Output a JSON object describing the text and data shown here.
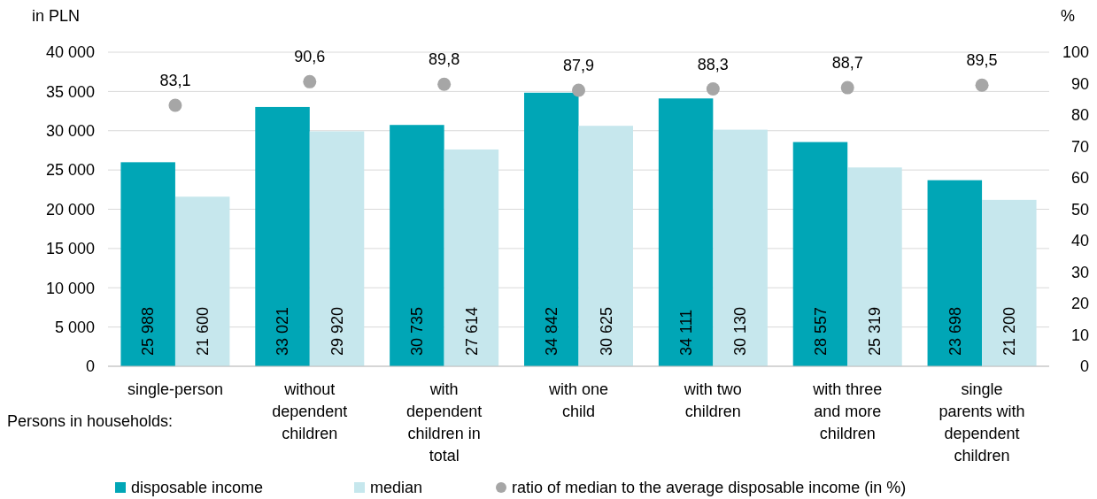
{
  "chart_data": {
    "type": "bar",
    "ylabel": "in PLN",
    "y2label": "%",
    "categories": [
      "single-person",
      "without dependent children",
      "with dependent children in total",
      "with one child",
      "with two children",
      "with three and more children",
      "single parents with dependent children"
    ],
    "series": [
      {
        "name": "disposable income",
        "color": "#00a6b6",
        "values": [
          25988,
          33021,
          30735,
          34842,
          34111,
          28557,
          23698
        ],
        "value_labels": [
          "25 988",
          "33 021",
          "30 735",
          "34 842",
          "34 111",
          "28 557",
          "23 698"
        ]
      },
      {
        "name": "median",
        "color": "#c6e7ed",
        "values": [
          21600,
          29920,
          27614,
          30625,
          30130,
          25319,
          21200
        ],
        "value_labels": [
          "21 600",
          "29 920",
          "27 614",
          "30 625",
          "30 130",
          "25 319",
          "21 200"
        ]
      },
      {
        "name": "ratio of median to the average disposable income (in %)",
        "type": "scatter",
        "axis": "y2",
        "color": "#a6a6a6",
        "marker": "circle",
        "x": [
          "single-person",
          "without dependent children",
          "with dependent children in total",
          "with one child",
          "with two children",
          "with three and more children",
          "single parents with dependent children"
        ],
        "values": [
          83.1,
          90.6,
          89.8,
          87.9,
          88.3,
          88.7,
          89.5
        ],
        "value_labels": [
          "83,1",
          "90,6",
          "89,8",
          "87,9",
          "88,3",
          "88,7",
          "89,5"
        ]
      }
    ],
    "ylim": [
      0,
      40000
    ],
    "yticks": [
      {
        "value": 0,
        "label": "0"
      },
      {
        "value": 5000,
        "label": "5 000"
      },
      {
        "value": 10000,
        "label": "10 000"
      },
      {
        "value": 15000,
        "label": "15 000"
      },
      {
        "value": 20000,
        "label": "20 000"
      },
      {
        "value": 25000,
        "label": "25 000"
      },
      {
        "value": 30000,
        "label": "30 000"
      },
      {
        "value": 35000,
        "label": "35 000"
      },
      {
        "value": 40000,
        "label": "40 000"
      }
    ],
    "y2lim": [
      0,
      100
    ],
    "y2ticks": [
      0,
      10,
      20,
      30,
      40,
      50,
      60,
      70,
      80,
      90,
      100
    ],
    "grid": "y",
    "legend": "bottom",
    "annotations": [
      "Persons in households:"
    ]
  }
}
